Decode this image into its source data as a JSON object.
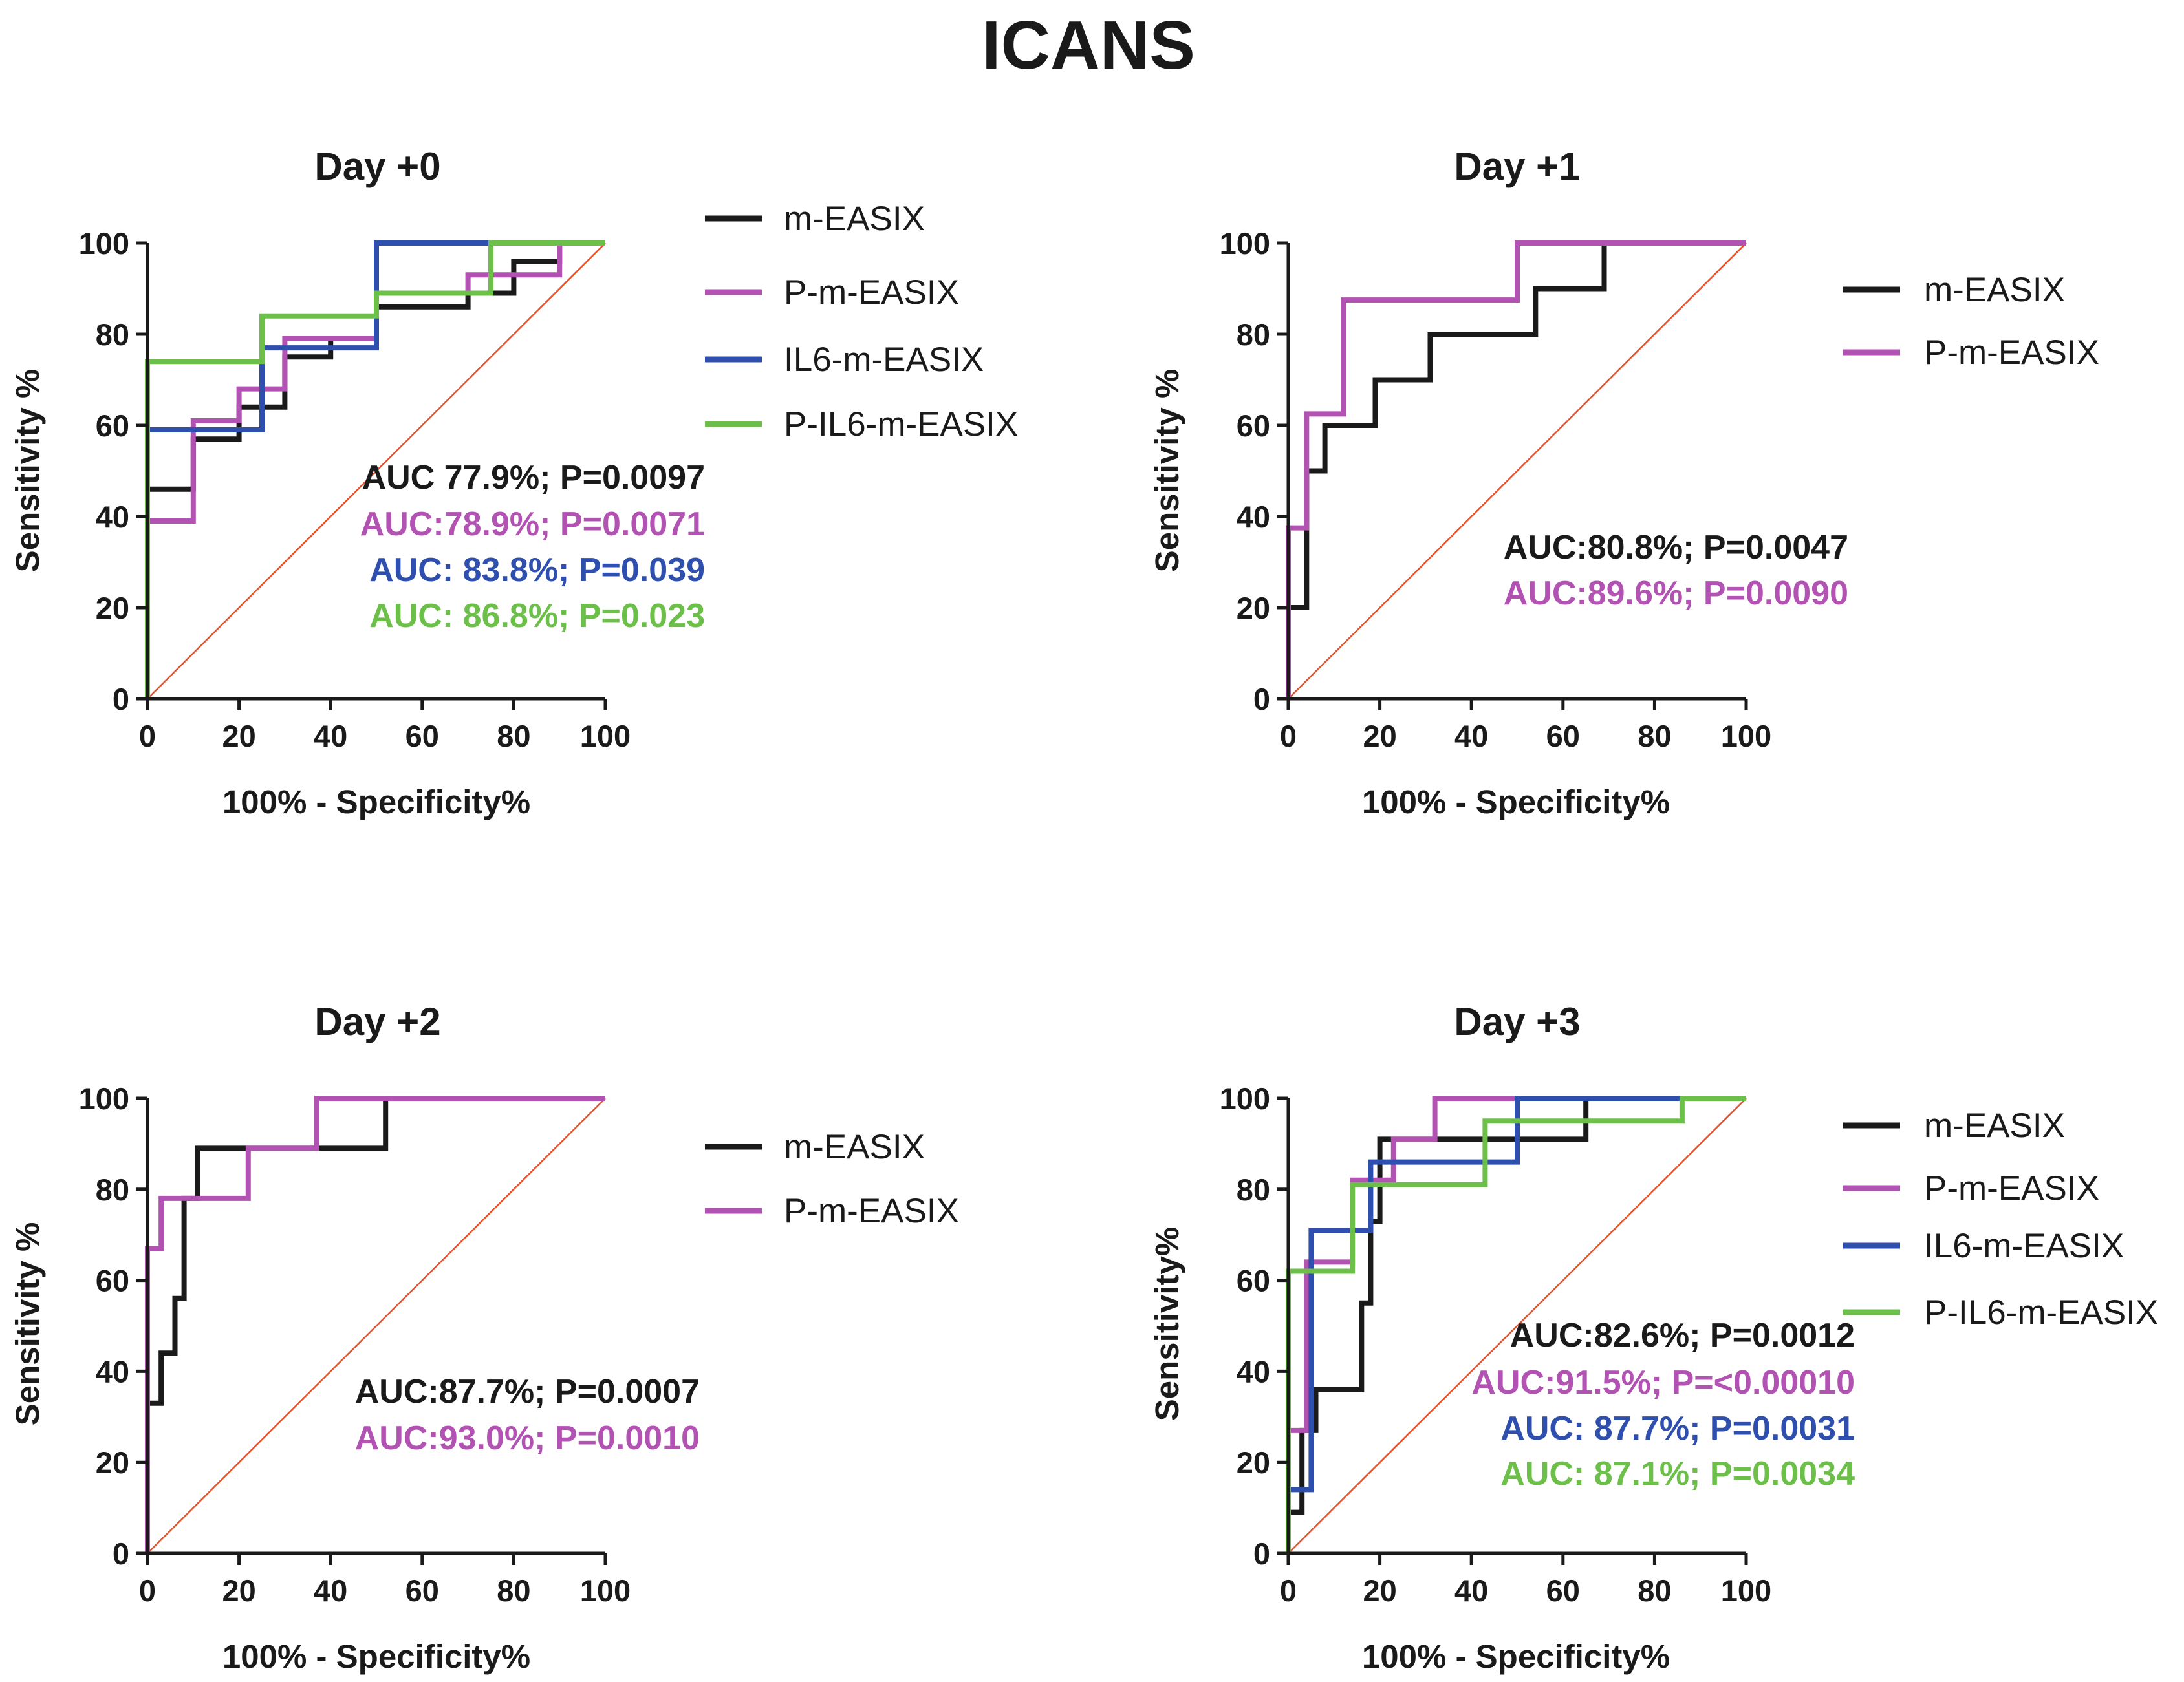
{
  "figure": {
    "title": "ICANS",
    "colors": {
      "m-EASIX": "#1a1a1a",
      "P-m-EASIX": "#b252b2",
      "IL6-m-EASIX": "#2f4fae",
      "P-IL6-m-EASIX": "#6cc04a",
      "reference": "#e8502a"
    }
  },
  "chart_data": [
    {
      "type": "line",
      "title": "Day +0",
      "xlabel": "100% - Specificity%",
      "ylabel": "Sensitivity %",
      "xlim": [
        0,
        100
      ],
      "ylim": [
        0,
        100
      ],
      "xticks": [
        0,
        20,
        40,
        60,
        80,
        100
      ],
      "yticks": [
        0,
        20,
        40,
        60,
        80,
        100
      ],
      "legend": [
        "m-EASIX",
        "P-m-EASIX",
        "IL6-m-EASIX",
        "P-IL6-m-EASIX"
      ],
      "reference_line": "diagonal",
      "series": [
        {
          "name": "m-EASIX",
          "x": [
            0,
            0,
            10,
            10,
            20,
            20,
            30,
            30,
            40,
            40,
            50,
            50,
            70,
            70,
            80,
            80,
            90,
            90,
            100
          ],
          "y": [
            0,
            46,
            46,
            57,
            57,
            64,
            64,
            75,
            75,
            79,
            79,
            86,
            86,
            89,
            89,
            96,
            96,
            100,
            100
          ]
        },
        {
          "name": "P-m-EASIX",
          "x": [
            0,
            0,
            10,
            10,
            20,
            20,
            30,
            30,
            50,
            50,
            70,
            70,
            90,
            90,
            100
          ],
          "y": [
            0,
            39,
            39,
            61,
            61,
            68,
            68,
            79,
            79,
            89,
            89,
            93,
            93,
            100,
            100
          ]
        },
        {
          "name": "IL6-m-EASIX",
          "x": [
            0,
            0,
            25,
            25,
            50,
            50,
            100
          ],
          "y": [
            0,
            59,
            59,
            77,
            77,
            100,
            100
          ]
        },
        {
          "name": "P-IL6-m-EASIX",
          "x": [
            0,
            0,
            25,
            25,
            50,
            50,
            75,
            75,
            100
          ],
          "y": [
            0,
            74,
            74,
            84,
            84,
            89,
            89,
            100,
            100
          ]
        }
      ],
      "annotations": [
        {
          "series": "m-EASIX",
          "text": "AUC 77.9%; P=0.0097"
        },
        {
          "series": "P-m-EASIX",
          "text": "AUC:78.9%; P=0.0071"
        },
        {
          "series": "IL6-m-EASIX",
          "text": "AUC: 83.8%; P=0.039"
        },
        {
          "series": "P-IL6-m-EASIX",
          "text": "AUC: 86.8%; P=0.023"
        }
      ]
    },
    {
      "type": "line",
      "title": "Day +1",
      "xlabel": "100% - Specificity%",
      "ylabel": "Sensitivity %",
      "xlim": [
        0,
        100
      ],
      "ylim": [
        0,
        100
      ],
      "xticks": [
        0,
        20,
        40,
        60,
        80,
        100
      ],
      "yticks": [
        0,
        20,
        40,
        60,
        80,
        100
      ],
      "legend": [
        "m-EASIX",
        "P-m-EASIX"
      ],
      "reference_line": "diagonal",
      "series": [
        {
          "name": "m-EASIX",
          "x": [
            0,
            0,
            4,
            4,
            8,
            8,
            19,
            19,
            31,
            31,
            54,
            54,
            69,
            69,
            100
          ],
          "y": [
            0,
            20,
            20,
            50,
            50,
            60,
            60,
            70,
            70,
            80,
            80,
            90,
            90,
            100,
            100
          ]
        },
        {
          "name": "P-m-EASIX",
          "x": [
            0,
            0,
            4,
            4,
            12,
            12,
            50,
            50,
            100
          ],
          "y": [
            0,
            37.5,
            37.5,
            62.5,
            62.5,
            87.5,
            87.5,
            100,
            100
          ]
        }
      ],
      "annotations": [
        {
          "series": "m-EASIX",
          "text": "AUC:80.8%; P=0.0047"
        },
        {
          "series": "P-m-EASIX",
          "text": "AUC:89.6%; P=0.0090"
        }
      ]
    },
    {
      "type": "line",
      "title": "Day +2",
      "xlabel": "100% - Specificity%",
      "ylabel": "Sensitivity %",
      "xlim": [
        0,
        100
      ],
      "ylim": [
        0,
        100
      ],
      "xticks": [
        0,
        20,
        40,
        60,
        80,
        100
      ],
      "yticks": [
        0,
        20,
        40,
        60,
        80,
        100
      ],
      "legend": [
        "m-EASIX",
        "P-m-EASIX"
      ],
      "reference_line": "diagonal",
      "series": [
        {
          "name": "m-EASIX",
          "x": [
            0,
            0,
            3,
            3,
            6,
            6,
            8,
            8,
            11,
            11,
            28,
            28,
            52,
            52,
            100
          ],
          "y": [
            0,
            33,
            33,
            44,
            44,
            56,
            56,
            78,
            78,
            89,
            89,
            89,
            89,
            100,
            100
          ]
        },
        {
          "name": "P-m-EASIX",
          "x": [
            0,
            0,
            3,
            3,
            22,
            22,
            37,
            37,
            100
          ],
          "y": [
            0,
            67,
            67,
            78,
            78,
            89,
            89,
            100,
            100
          ]
        }
      ],
      "annotations": [
        {
          "series": "m-EASIX",
          "text": "AUC:87.7%; P=0.0007"
        },
        {
          "series": "P-m-EASIX",
          "text": "AUC:93.0%; P=0.0010"
        }
      ]
    },
    {
      "type": "line",
      "title": "Day +3",
      "xlabel": "100% - Specificity%",
      "ylabel": "Sensitivity%",
      "xlim": [
        0,
        100
      ],
      "ylim": [
        0,
        100
      ],
      "xticks": [
        0,
        20,
        40,
        60,
        80,
        100
      ],
      "yticks": [
        0,
        20,
        40,
        60,
        80,
        100
      ],
      "legend": [
        "m-EASIX",
        "P-m-EASIX",
        "IL6-m-EASIX",
        "P-IL6-m-EASIX"
      ],
      "reference_line": "diagonal",
      "series": [
        {
          "name": "m-EASIX",
          "x": [
            0,
            0,
            3,
            3,
            6,
            6,
            16,
            16,
            18,
            18,
            20,
            20,
            65,
            65,
            100
          ],
          "y": [
            0,
            9,
            9,
            27,
            27,
            36,
            36,
            55,
            55,
            73,
            73,
            91,
            91,
            100,
            100
          ]
        },
        {
          "name": "P-m-EASIX",
          "x": [
            0,
            0,
            4,
            4,
            14,
            14,
            18,
            18,
            23,
            23,
            32,
            32,
            100
          ],
          "y": [
            0,
            27,
            27,
            64,
            64,
            82,
            82,
            82,
            82,
            91,
            91,
            100,
            100
          ]
        },
        {
          "name": "IL6-m-EASIX",
          "x": [
            0,
            0,
            5,
            5,
            18,
            18,
            50,
            50,
            100
          ],
          "y": [
            0,
            14,
            14,
            71,
            71,
            86,
            86,
            100,
            100
          ]
        },
        {
          "name": "P-IL6-m-EASIX",
          "x": [
            0,
            0,
            5,
            5,
            14,
            14,
            43,
            43,
            86,
            86,
            100
          ],
          "y": [
            0,
            62,
            62,
            62,
            62,
            81,
            81,
            95,
            95,
            100,
            100
          ]
        }
      ],
      "annotations": [
        {
          "series": "m-EASIX",
          "text": "AUC:82.6%; P=0.0012"
        },
        {
          "series": "P-m-EASIX",
          "text": "AUC:91.5%; P=<0.00010"
        },
        {
          "series": "IL6-m-EASIX",
          "text": "AUC: 87.7%; P=0.0031"
        },
        {
          "series": "P-IL6-m-EASIX",
          "text": "AUC: 87.1%; P=0.0034"
        }
      ]
    }
  ]
}
